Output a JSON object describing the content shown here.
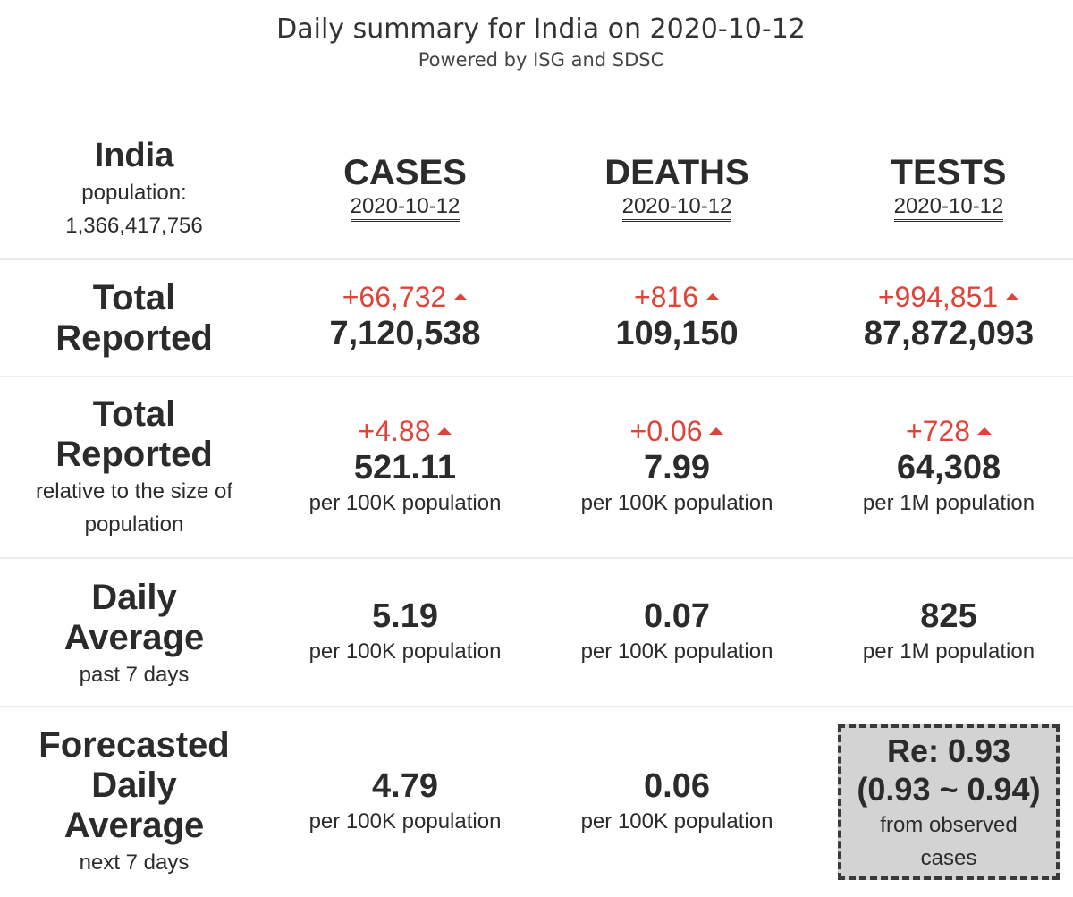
{
  "header": {
    "title": "Daily summary for India on 2020-10-12",
    "subtitle": "Powered by ISG and SDSC"
  },
  "region": {
    "name": "India",
    "population_label": "population:",
    "population": "1,366,417,756"
  },
  "columns": [
    {
      "name": "CASES",
      "date": "2020-10-12"
    },
    {
      "name": "DEATHS",
      "date": "2020-10-12"
    },
    {
      "name": "TESTS",
      "date": "2020-10-12"
    }
  ],
  "rows": {
    "total_reported": {
      "label_line1": "Total",
      "label_line2": "Reported",
      "cells": [
        {
          "delta": "+66,732",
          "value": "7,120,538"
        },
        {
          "delta": "+816",
          "value": "109,150"
        },
        {
          "delta": "+994,851",
          "value": "87,872,093"
        }
      ]
    },
    "relative": {
      "label_line1": "Total",
      "label_line2": "Reported",
      "sub_line1": "relative to the size of",
      "sub_line2": "population",
      "cells": [
        {
          "delta": "+4.88",
          "value": "521.11",
          "unit": "per 100K population"
        },
        {
          "delta": "+0.06",
          "value": "7.99",
          "unit": "per 100K population"
        },
        {
          "delta": "+728",
          "value": "64,308",
          "unit": "per 1M population"
        }
      ]
    },
    "daily_average": {
      "label_line1": "Daily",
      "label_line2": "Average",
      "sub": "past 7 days",
      "cells": [
        {
          "value": "5.19",
          "unit": "per 100K population"
        },
        {
          "value": "0.07",
          "unit": "per 100K population"
        },
        {
          "value": "825",
          "unit": "per 1M population"
        }
      ]
    },
    "forecast": {
      "label_line1": "Forecasted",
      "label_line2": "Daily",
      "label_line3": "Average",
      "sub": "next 7 days",
      "cells": [
        {
          "value": "4.79",
          "unit": "per 100K population"
        },
        {
          "value": "0.06",
          "unit": "per 100K population"
        }
      ],
      "re": {
        "main": "Re: 0.93",
        "range": "(0.93 ~ 0.94)",
        "sub_line1": "from observed",
        "sub_line2": "cases"
      }
    }
  },
  "colors": {
    "delta": "#e04438",
    "text": "#2b2b2b",
    "re_box_bg": "#d3d3d3"
  }
}
